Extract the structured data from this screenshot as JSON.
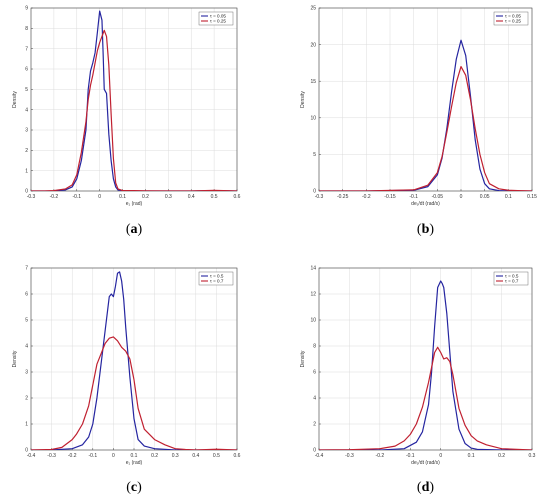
{
  "colors": {
    "blue": "#2525a0",
    "red": "#c02030",
    "grid": "#dcdcdc",
    "axis": "#444444"
  },
  "chart_data": [
    {
      "type": "line",
      "caption_open": "(",
      "caption_letter": "a",
      "caption_close": ")",
      "xlabel": "e₁ (rad)",
      "ylabel": "Density",
      "xlim": [
        -0.3,
        0.6
      ],
      "ylim": [
        0,
        9
      ],
      "xticks": [
        -0.3,
        -0.2,
        -0.1,
        0,
        0.1,
        0.2,
        0.3,
        0.4,
        0.5,
        0.6
      ],
      "xtick_labels": [
        "-0.3",
        "-0.2",
        "-0.1",
        "0",
        "0.1",
        "0.2",
        "0.3",
        "0.4",
        "0.5",
        "0.6"
      ],
      "yticks": [
        0,
        1,
        2,
        3,
        4,
        5,
        6,
        7,
        8,
        9
      ],
      "ytick_labels": [
        "0",
        "1",
        "2",
        "3",
        "4",
        "5",
        "6",
        "7",
        "8",
        "9"
      ],
      "grid": true,
      "legend_position": "top-right",
      "series": [
        {
          "name": "τ = 0.05",
          "color": "#2525a0",
          "x": [
            -0.3,
            -0.2,
            -0.15,
            -0.12,
            -0.1,
            -0.08,
            -0.06,
            -0.05,
            -0.04,
            -0.03,
            -0.02,
            -0.01,
            0.0,
            0.01,
            0.015,
            0.02,
            0.03,
            0.04,
            0.05,
            0.06,
            0.07,
            0.08,
            0.1,
            0.15,
            0.2,
            0.3,
            0.4,
            0.5,
            0.6
          ],
          "y": [
            0,
            0,
            0.05,
            0.2,
            0.6,
            1.5,
            3.0,
            5.0,
            5.9,
            6.3,
            6.8,
            7.8,
            8.85,
            8.4,
            6.8,
            5.0,
            4.8,
            2.8,
            1.5,
            0.6,
            0.2,
            0.05,
            0.01,
            0,
            0,
            0,
            0,
            0.02,
            0
          ]
        },
        {
          "name": "τ = 0.25",
          "color": "#c02030",
          "x": [
            -0.3,
            -0.24,
            -0.2,
            -0.15,
            -0.12,
            -0.1,
            -0.08,
            -0.06,
            -0.05,
            -0.04,
            -0.03,
            -0.02,
            -0.01,
            0.0,
            0.01,
            0.02,
            0.03,
            0.04,
            0.05,
            0.06,
            0.07,
            0.08,
            0.1,
            0.15,
            0.2,
            0.3,
            0.4,
            0.5,
            0.6
          ],
          "y": [
            0,
            0,
            0.02,
            0.1,
            0.3,
            0.8,
            1.9,
            3.4,
            4.5,
            5.2,
            5.7,
            6.3,
            6.9,
            7.3,
            7.6,
            7.9,
            7.6,
            6.2,
            3.8,
            1.6,
            0.4,
            0.1,
            0.02,
            0.02,
            0.01,
            0,
            0,
            0.03,
            0
          ]
        }
      ]
    },
    {
      "type": "line",
      "caption_open": "(",
      "caption_letter": "b",
      "caption_close": ")",
      "xlabel": "de₁/dt (rad/s)",
      "ylabel": "Density",
      "xlim": [
        -0.3,
        0.15
      ],
      "ylim": [
        0,
        25
      ],
      "xticks": [
        -0.3,
        -0.25,
        -0.2,
        -0.15,
        -0.1,
        -0.05,
        0,
        0.05,
        0.1,
        0.15
      ],
      "xtick_labels": [
        "-0.3",
        "-0.25",
        "-0.2",
        "-0.15",
        "-0.1",
        "-0.05",
        "0",
        "0.05",
        "0.1",
        "0.15"
      ],
      "yticks": [
        0,
        5,
        10,
        15,
        20,
        25
      ],
      "ytick_labels": [
        "0",
        "5",
        "10",
        "15",
        "20",
        "25"
      ],
      "grid": true,
      "legend_position": "top-right",
      "series": [
        {
          "name": "τ = 0.05",
          "color": "#2525a0",
          "x": [
            -0.3,
            -0.2,
            -0.1,
            -0.07,
            -0.05,
            -0.04,
            -0.03,
            -0.02,
            -0.01,
            0.0,
            0.01,
            0.02,
            0.03,
            0.04,
            0.05,
            0.06,
            0.08,
            0.1,
            0.15
          ],
          "y": [
            0,
            0,
            0.1,
            0.6,
            2.2,
            4.5,
            8.5,
            13.5,
            18.0,
            20.6,
            18.5,
            13.0,
            7.0,
            3.0,
            1.0,
            0.3,
            0.05,
            0,
            0
          ]
        },
        {
          "name": "τ = 0.25",
          "color": "#c02030",
          "x": [
            -0.3,
            -0.2,
            -0.1,
            -0.07,
            -0.05,
            -0.04,
            -0.03,
            -0.02,
            -0.01,
            0.0,
            0.01,
            0.02,
            0.03,
            0.04,
            0.05,
            0.06,
            0.08,
            0.1,
            0.12,
            0.15
          ],
          "y": [
            0,
            0,
            0.15,
            0.8,
            2.5,
            4.7,
            8.0,
            11.5,
            14.8,
            17.0,
            15.8,
            12.5,
            8.5,
            5.0,
            2.5,
            1.0,
            0.3,
            0.1,
            0.05,
            0
          ]
        }
      ]
    },
    {
      "type": "line",
      "caption_open": "(",
      "caption_letter": "c",
      "caption_close": ")",
      "xlabel": "e₁ (rad)",
      "ylabel": "Density",
      "xlim": [
        -0.4,
        0.6
      ],
      "ylim": [
        0,
        7
      ],
      "xticks": [
        -0.4,
        -0.3,
        -0.2,
        -0.1,
        0,
        0.1,
        0.2,
        0.3,
        0.4,
        0.5,
        0.6
      ],
      "xtick_labels": [
        "-0.4",
        "-0.3",
        "-0.2",
        "-0.1",
        "0",
        "0.1",
        "0.2",
        "0.3",
        "0.4",
        "0.5",
        "0.6"
      ],
      "yticks": [
        0,
        1,
        2,
        3,
        4,
        5,
        6,
        7
      ],
      "ytick_labels": [
        "0",
        "1",
        "2",
        "3",
        "4",
        "5",
        "6",
        "7"
      ],
      "grid": true,
      "legend_position": "top-right",
      "series": [
        {
          "name": "τ = 0.5",
          "color": "#2525a0",
          "x": [
            -0.4,
            -0.3,
            -0.2,
            -0.15,
            -0.12,
            -0.1,
            -0.08,
            -0.06,
            -0.04,
            -0.02,
            -0.01,
            0.0,
            0.01,
            0.02,
            0.03,
            0.04,
            0.05,
            0.06,
            0.08,
            0.1,
            0.12,
            0.15,
            0.2,
            0.3,
            0.4,
            0.5,
            0.6
          ],
          "y": [
            0,
            0,
            0.05,
            0.2,
            0.5,
            1.0,
            2.0,
            3.3,
            4.6,
            5.9,
            6.0,
            5.9,
            6.3,
            6.8,
            6.85,
            6.5,
            5.8,
            4.7,
            2.8,
            1.2,
            0.4,
            0.15,
            0.05,
            0,
            0,
            0,
            0
          ]
        },
        {
          "name": "τ = 0.7",
          "color": "#c02030",
          "x": [
            -0.4,
            -0.3,
            -0.25,
            -0.2,
            -0.18,
            -0.15,
            -0.12,
            -0.1,
            -0.08,
            -0.06,
            -0.04,
            -0.02,
            0.0,
            0.02,
            0.04,
            0.06,
            0.08,
            0.1,
            0.12,
            0.15,
            0.2,
            0.25,
            0.3,
            0.35,
            0.4,
            0.5,
            0.6
          ],
          "y": [
            0,
            0.02,
            0.1,
            0.4,
            0.6,
            1.0,
            1.7,
            2.5,
            3.3,
            3.7,
            4.1,
            4.3,
            4.35,
            4.2,
            3.95,
            3.8,
            3.5,
            2.7,
            1.6,
            0.8,
            0.4,
            0.2,
            0.05,
            0.02,
            0,
            0.03,
            0
          ]
        }
      ]
    },
    {
      "type": "line",
      "caption_open": "(",
      "caption_letter": "d",
      "caption_close": ")",
      "xlabel": "de₁/dt (rad/s)",
      "ylabel": "Density",
      "xlim": [
        -0.4,
        0.3
      ],
      "ylim": [
        0,
        14
      ],
      "xticks": [
        -0.4,
        -0.3,
        -0.2,
        -0.1,
        0,
        0.1,
        0.2,
        0.3
      ],
      "xtick_labels": [
        "-0.4",
        "-0.3",
        "-0.2",
        "-0.1",
        "0",
        "0.1",
        "0.2",
        "0.3"
      ],
      "yticks": [
        0,
        2,
        4,
        6,
        8,
        10,
        12,
        14
      ],
      "ytick_labels": [
        "0",
        "2",
        "4",
        "6",
        "8",
        "10",
        "12",
        "14"
      ],
      "grid": true,
      "legend_position": "top-right",
      "series": [
        {
          "name": "τ = 0.5",
          "color": "#2525a0",
          "x": [
            -0.4,
            -0.2,
            -0.12,
            -0.08,
            -0.06,
            -0.04,
            -0.03,
            -0.02,
            -0.01,
            0.0,
            0.005,
            0.01,
            0.02,
            0.03,
            0.04,
            0.06,
            0.08,
            0.1,
            0.12,
            0.2,
            0.3
          ],
          "y": [
            0,
            0,
            0.1,
            0.6,
            1.4,
            3.5,
            6.0,
            9.5,
            12.5,
            13.0,
            12.8,
            12.5,
            10.5,
            7.5,
            4.5,
            1.6,
            0.5,
            0.15,
            0.05,
            0,
            0
          ]
        },
        {
          "name": "τ = 0.7",
          "color": "#c02030",
          "x": [
            -0.4,
            -0.3,
            -0.2,
            -0.15,
            -0.12,
            -0.1,
            -0.08,
            -0.06,
            -0.04,
            -0.02,
            -0.01,
            0.0,
            0.01,
            0.02,
            0.03,
            0.04,
            0.05,
            0.06,
            0.08,
            0.1,
            0.12,
            0.15,
            0.2,
            0.25,
            0.3
          ],
          "y": [
            0,
            0.02,
            0.1,
            0.3,
            0.7,
            1.2,
            2.0,
            3.3,
            5.2,
            7.5,
            7.9,
            7.5,
            7.0,
            7.1,
            6.8,
            5.8,
            4.5,
            3.2,
            1.9,
            1.1,
            0.7,
            0.4,
            0.1,
            0.05,
            0
          ]
        }
      ]
    }
  ]
}
